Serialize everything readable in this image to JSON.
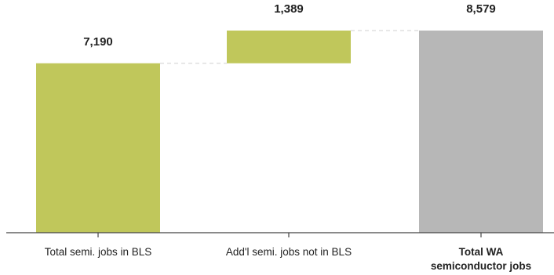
{
  "chart_data": {
    "type": "bar",
    "subtype": "waterfall",
    "title": "",
    "xlabel": "",
    "ylabel": "",
    "ylim": [
      0,
      8579
    ],
    "grid": false,
    "legend": "none",
    "bars": [
      {
        "category": "Total semi. jobs in BLS",
        "category_lines": [
          "Total semi. jobs in BLS"
        ],
        "value": 7190,
        "value_label": "7,190",
        "start": 0,
        "end": 7190,
        "kind": "base",
        "color": "#c0c75b"
      },
      {
        "category": "Add'l semi. jobs not in BLS",
        "category_lines": [
          "Add'l semi. jobs not in BLS"
        ],
        "value": 1389,
        "value_label": "1,389",
        "start": 7190,
        "end": 8579,
        "kind": "increase",
        "color": "#c0c75b"
      },
      {
        "category": "Total WA semiconductor jobs",
        "category_lines": [
          "Total WA",
          "semiconductor jobs"
        ],
        "value": 8579,
        "value_label": "8,579",
        "start": 0,
        "end": 8579,
        "kind": "total",
        "color": "#b7b7b7"
      }
    ],
    "connector_color": "#d9d9d9",
    "axis_color": "#444444"
  }
}
